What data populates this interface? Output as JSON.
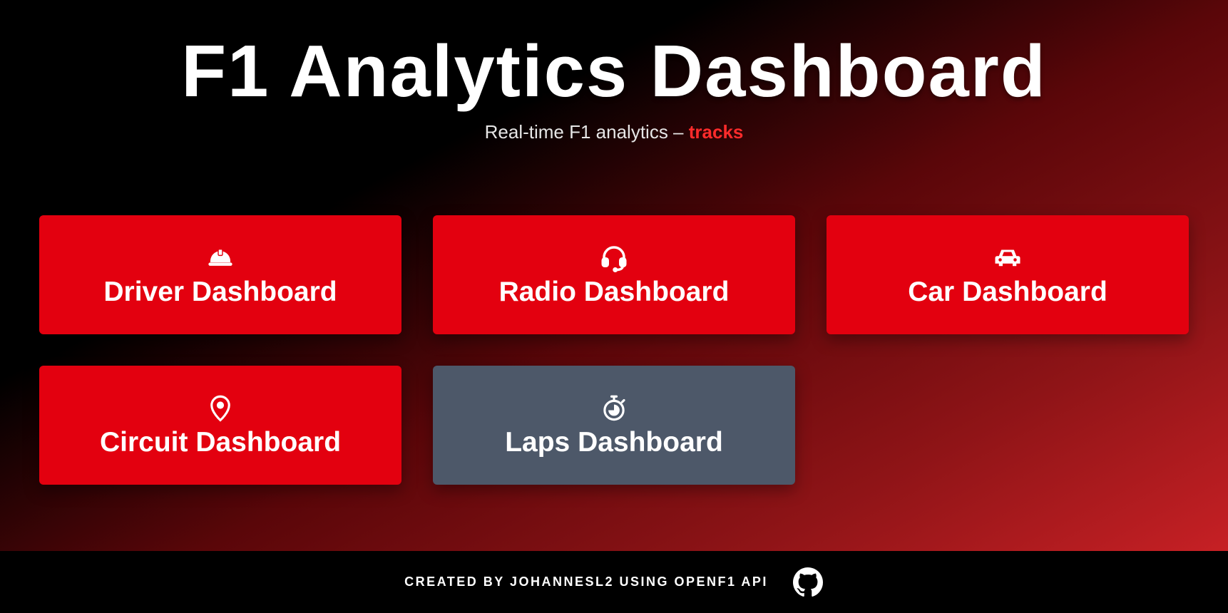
{
  "header": {
    "title": "F1 Analytics Dashboard",
    "subtitle_prefix": "Real-time F1 analytics –",
    "subtitle_accent": "tracks"
  },
  "cards": [
    {
      "label": "Driver Dashboard",
      "icon": "helmet-icon",
      "color": "#e3000f"
    },
    {
      "label": "Radio Dashboard",
      "icon": "headset-icon",
      "color": "#e3000f"
    },
    {
      "label": "Car Dashboard",
      "icon": "car-icon",
      "color": "#e3000f"
    },
    {
      "label": "Circuit Dashboard",
      "icon": "map-pin-icon",
      "color": "#e3000f"
    },
    {
      "label": "Laps Dashboard",
      "icon": "stopwatch-icon",
      "color": "#4d5869"
    }
  ],
  "footer": {
    "credit": "CREATED BY JOHANNESL2 USING OPENF1 API",
    "icon": "github-icon"
  },
  "colors": {
    "accent": "#ff2b2b",
    "card_red": "#e3000f",
    "card_gray": "#4d5869",
    "footer_bg": "#000000"
  }
}
